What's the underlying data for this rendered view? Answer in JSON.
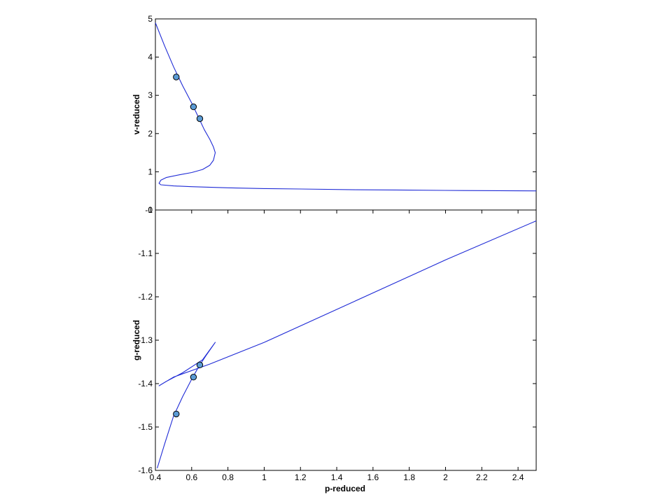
{
  "chart_data": [
    {
      "type": "line",
      "xlabel": "",
      "ylabel": "v-reduced",
      "xlim": [
        0.4,
        2.5
      ],
      "ylim": [
        0,
        5
      ],
      "xticks": [],
      "yticks": [
        0,
        1,
        2,
        3,
        4,
        5
      ],
      "ytick_labels": [
        "0",
        "1",
        "2",
        "3",
        "4",
        "5"
      ],
      "grid": false,
      "line_color": "#1f2bd6",
      "marker_color": "#5b9bd5",
      "series": [
        {
          "x": [
            0.4,
            0.45,
            0.5,
            0.55,
            0.6,
            0.64,
            0.67,
            0.7,
            0.72,
            0.73,
            0.72,
            0.7,
            0.66,
            0.6,
            0.53,
            0.46,
            0.43,
            0.42,
            0.43,
            0.5,
            0.6,
            0.8,
            1.0,
            1.2,
            1.5,
            1.8,
            2.1,
            2.5
          ],
          "y": [
            4.9,
            4.3,
            3.75,
            3.25,
            2.8,
            2.4,
            2.1,
            1.85,
            1.65,
            1.5,
            1.3,
            1.17,
            1.06,
            0.98,
            0.92,
            0.85,
            0.78,
            0.7,
            0.66,
            0.63,
            0.61,
            0.58,
            0.56,
            0.55,
            0.53,
            0.52,
            0.51,
            0.5
          ]
        }
      ],
      "points": {
        "x": [
          0.515,
          0.61,
          0.645
        ],
        "y": [
          3.48,
          2.7,
          2.39
        ]
      }
    },
    {
      "type": "line",
      "xlabel": "p-reduced",
      "ylabel": "g-reduced",
      "xlim": [
        0.4,
        2.5
      ],
      "ylim": [
        -1.6,
        -1.0
      ],
      "xticks": [
        0.4,
        0.6,
        0.8,
        1.0,
        1.2,
        1.4,
        1.6,
        1.8,
        2.0,
        2.2,
        2.4
      ],
      "xtick_labels": [
        "0.4",
        "0.6",
        "0.8",
        "1",
        "1.2",
        "1.4",
        "1.6",
        "1.8",
        "2",
        "2.2",
        "2.4"
      ],
      "yticks": [
        -1.6,
        -1.5,
        -1.4,
        -1.3,
        -1.2,
        -1.1,
        -1.0
      ],
      "ytick_labels": [
        "-1.6",
        "-1.5",
        "-1.4",
        "-1.3",
        "-1.2",
        "-1.1",
        "-1"
      ],
      "grid": false,
      "line_color": "#1f2bd6",
      "marker_color": "#5b9bd5",
      "series": [
        {
          "x": [
            0.41,
            0.45,
            0.5,
            0.55,
            0.6,
            0.64,
            0.68,
            0.73,
            0.66,
            0.55,
            0.46,
            0.42,
            0.5,
            0.7,
            1.0,
            1.5,
            2.0,
            2.5
          ],
          "y": [
            -1.595,
            -1.54,
            -1.475,
            -1.43,
            -1.39,
            -1.36,
            -1.335,
            -1.305,
            -1.345,
            -1.375,
            -1.395,
            -1.405,
            -1.385,
            -1.355,
            -1.305,
            -1.21,
            -1.115,
            -1.025
          ]
        }
      ],
      "points": {
        "x": [
          0.515,
          0.61,
          0.645
        ],
        "y": [
          -1.47,
          -1.385,
          -1.357
        ]
      }
    }
  ]
}
